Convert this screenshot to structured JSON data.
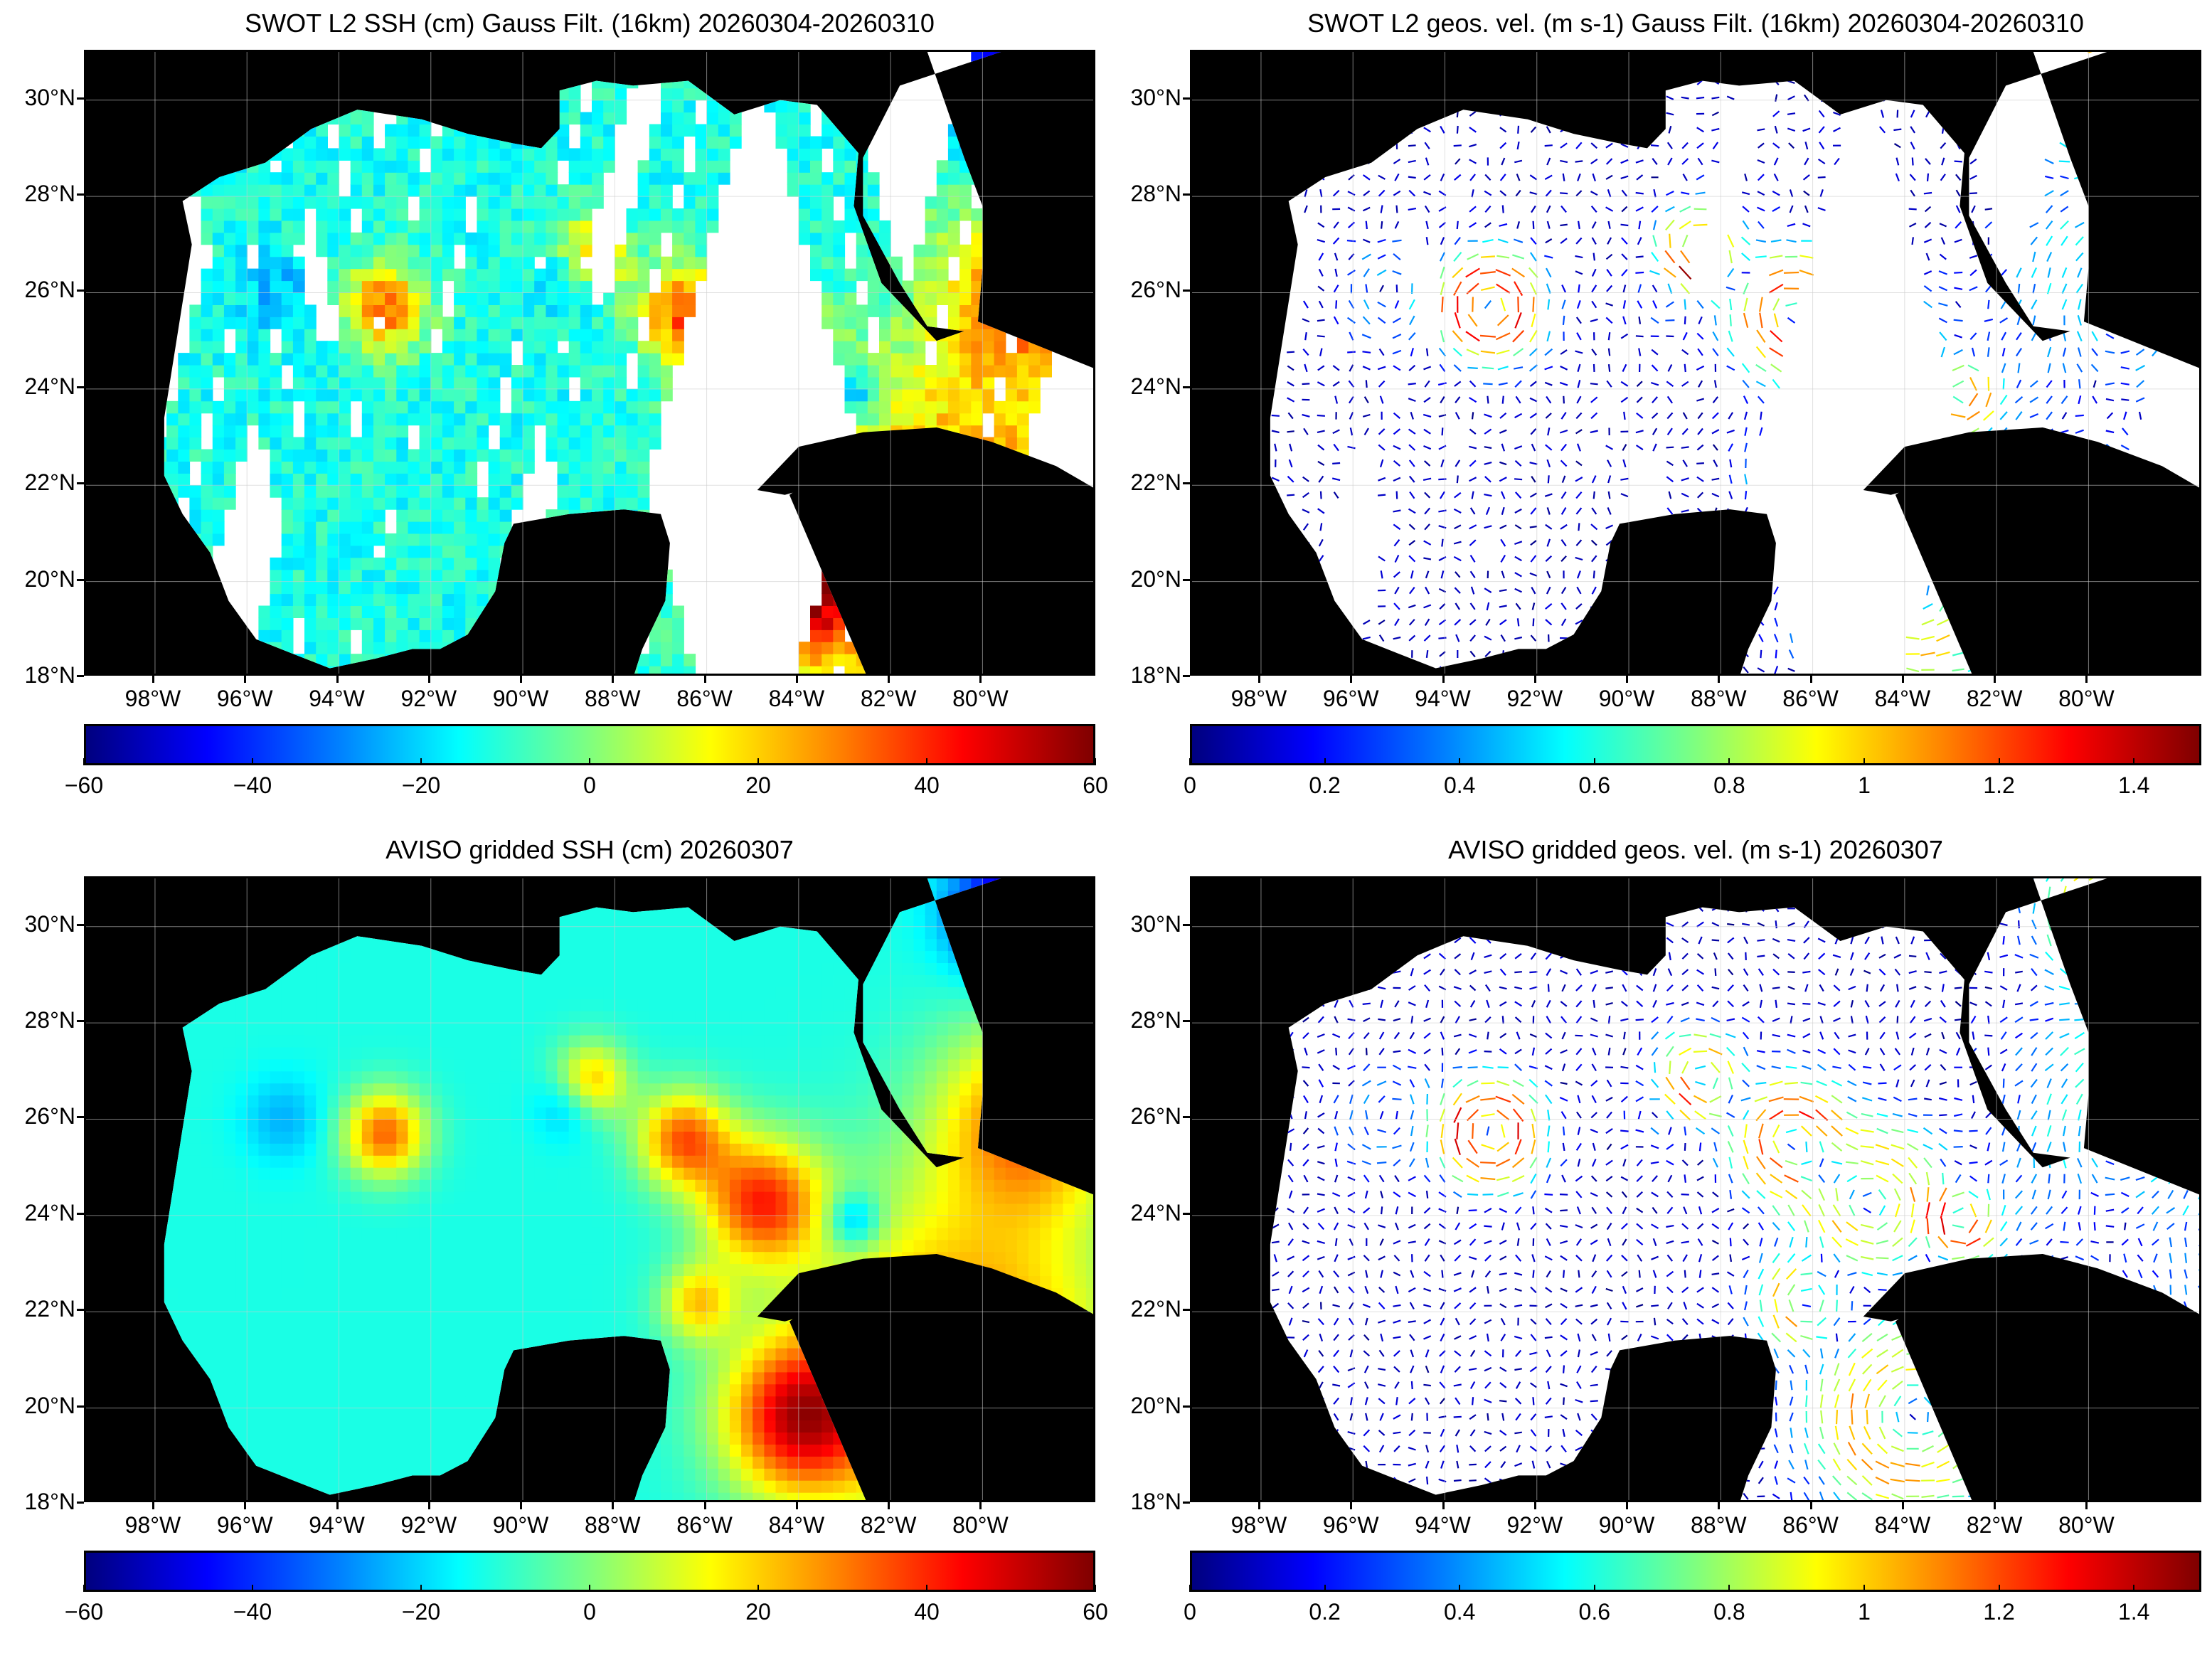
{
  "panels": [
    {
      "id": "swot-ssh",
      "title": "SWOT L2 SSH (cm) Gauss Filt. (16km) 20260304-20260310",
      "variable": "ssh",
      "source": "swot",
      "colorbar": {
        "ticks": [
          "−60",
          "−40",
          "−20",
          "0",
          "20",
          "40",
          "60"
        ],
        "min": -60,
        "max": 60,
        "colormap": "jet"
      }
    },
    {
      "id": "swot-vel",
      "title": "SWOT L2 geos. vel. (m s-1) Gauss Filt. (16km) 20260304-20260310",
      "variable": "vel",
      "source": "swot",
      "colorbar": {
        "ticks": [
          "0",
          "0.2",
          "0.4",
          "0.6",
          "0.8",
          "1",
          "1.2",
          "1.4"
        ],
        "min": 0,
        "max": 1.5,
        "colormap": "jet"
      }
    },
    {
      "id": "aviso-ssh",
      "title": "AVISO gridded SSH (cm) 20260307",
      "variable": "ssh",
      "source": "aviso",
      "colorbar": {
        "ticks": [
          "−60",
          "−40",
          "−20",
          "0",
          "20",
          "40",
          "60"
        ],
        "min": -60,
        "max": 60,
        "colormap": "jet"
      }
    },
    {
      "id": "aviso-vel",
      "title": "AVISO gridded geos. vel. (m s-1)  20260307",
      "variable": "vel",
      "source": "aviso",
      "colorbar": {
        "ticks": [
          "0",
          "0.2",
          "0.4",
          "0.6",
          "0.8",
          "1",
          "1.2",
          "1.4"
        ],
        "min": 0,
        "max": 1.5,
        "colormap": "jet"
      }
    }
  ],
  "map_extent": {
    "lon_min": -99.5,
    "lon_max": -77.5,
    "lat_min": 18,
    "lat_max": 31
  },
  "lon_ticks": [
    {
      "lon": -98,
      "label": "98°W"
    },
    {
      "lon": -96,
      "label": "96°W"
    },
    {
      "lon": -94,
      "label": "94°W"
    },
    {
      "lon": -92,
      "label": "92°W"
    },
    {
      "lon": -90,
      "label": "90°W"
    },
    {
      "lon": -88,
      "label": "88°W"
    },
    {
      "lon": -86,
      "label": "86°W"
    },
    {
      "lon": -84,
      "label": "84°W"
    },
    {
      "lon": -82,
      "label": "82°W"
    },
    {
      "lon": -80,
      "label": "80°W"
    }
  ],
  "lat_ticks": [
    {
      "lat": 18,
      "label": "18°N"
    },
    {
      "lat": 20,
      "label": "20°N"
    },
    {
      "lat": 22,
      "label": "22°N"
    },
    {
      "lat": 24,
      "label": "24°N"
    },
    {
      "lat": 26,
      "label": "26°N"
    },
    {
      "lat": 28,
      "label": "28°N"
    },
    {
      "lat": 30,
      "label": "30°N"
    }
  ],
  "colors": {
    "land": "#000000",
    "background": "#ffffff",
    "grid": "#cccccc"
  }
}
